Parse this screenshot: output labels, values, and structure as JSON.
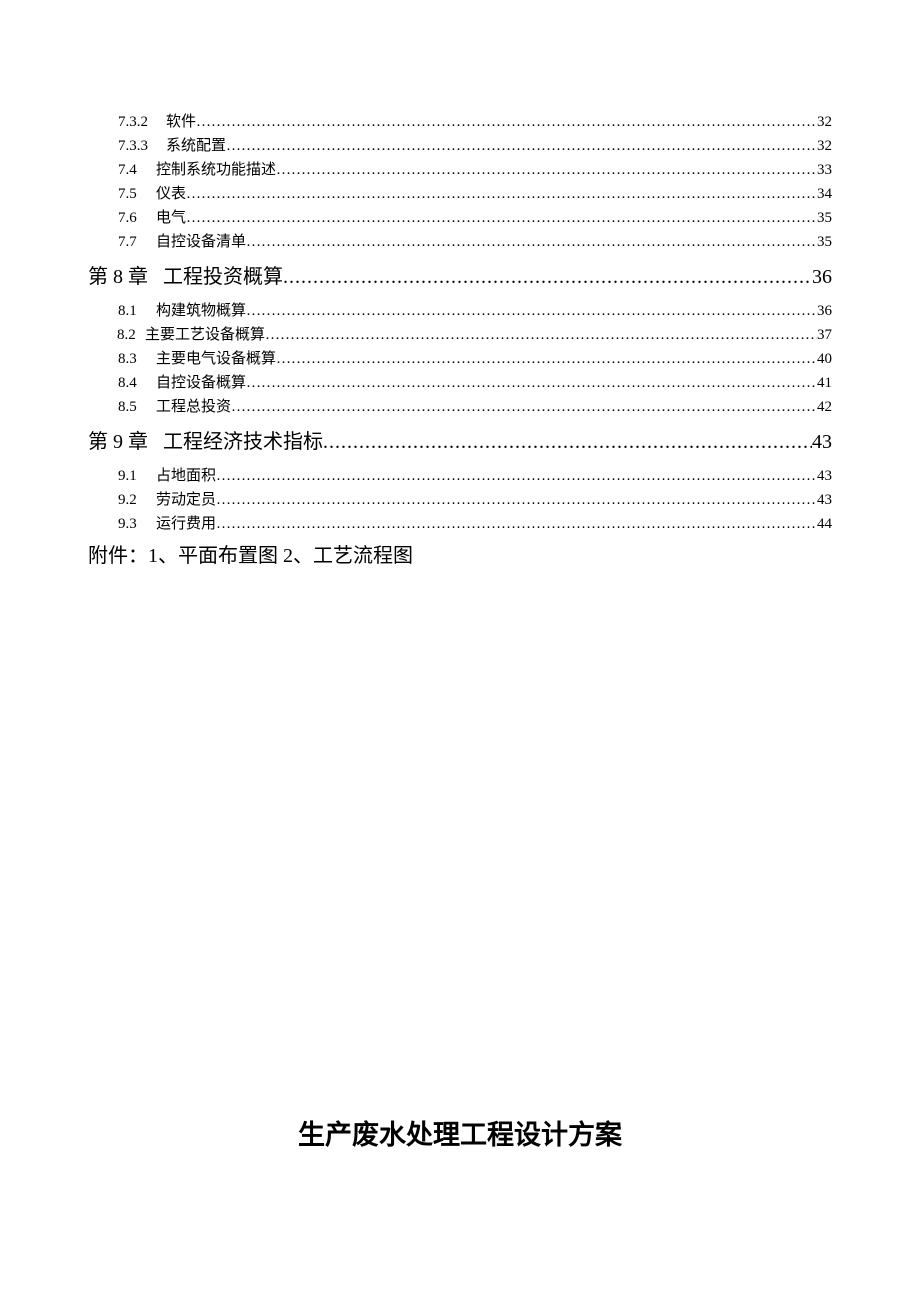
{
  "toc": {
    "entries": [
      {
        "level": "sub",
        "num": "7.3.2",
        "title": "软件",
        "page": "32",
        "numWidth": "48px"
      },
      {
        "level": "sub",
        "num": "7.3.3",
        "title": "系统配置",
        "page": "32",
        "numWidth": "48px"
      },
      {
        "level": "sub",
        "num": "7.4",
        "title": "控制系统功能描述",
        "page": "33",
        "numWidth": "38px"
      },
      {
        "level": "sub",
        "num": "7.5",
        "title": "仪表",
        "page": "34",
        "numWidth": "38px"
      },
      {
        "level": "sub",
        "num": "7.6",
        "title": "电气",
        "page": "35",
        "numWidth": "38px"
      },
      {
        "level": "sub",
        "num": "7.7",
        "title": "自控设备清单",
        "page": "35",
        "numWidth": "38px"
      },
      {
        "level": "chapter",
        "num": "第 8 章",
        "title": "工程投资概算",
        "page": "36"
      },
      {
        "level": "sub",
        "num": "8.1",
        "title": "构建筑物概算",
        "page": "36",
        "numWidth": "38px"
      },
      {
        "level": "sub2",
        "num": "8.2",
        "title": "主要工艺设备概算",
        "page": "37",
        "numWidth": "28px"
      },
      {
        "level": "sub",
        "num": "8.3",
        "title": "主要电气设备概算",
        "page": "40",
        "numWidth": "38px"
      },
      {
        "level": "sub",
        "num": "8.4",
        "title": "自控设备概算",
        "page": "41",
        "numWidth": "38px"
      },
      {
        "level": "sub",
        "num": "8.5",
        "title": "工程总投资",
        "page": "42",
        "numWidth": "38px"
      },
      {
        "level": "chapter",
        "num": "第 9 章",
        "title": "工程经济技术指标",
        "page": "43"
      },
      {
        "level": "sub",
        "num": "9.1",
        "title": "占地面积",
        "page": "43",
        "numWidth": "38px"
      },
      {
        "level": "sub",
        "num": "9.2",
        "title": "劳动定员",
        "page": "43",
        "numWidth": "38px"
      },
      {
        "level": "sub",
        "num": "9.3",
        "title": "运行费用",
        "page": "44",
        "numWidth": "38px"
      }
    ]
  },
  "attachment": "附件：1、平面布置图   2、工艺流程图",
  "mainTitle": "生产废水处理工程设计方案",
  "chapterGap": "   ",
  "styling": {
    "pageWidth": 920,
    "pageHeight": 1302,
    "background": "#ffffff",
    "textColor": "#000000",
    "subFontSize": 15,
    "chapterFontSize": 20,
    "titleFontSize": 27,
    "fontFamily": "SimSun"
  }
}
